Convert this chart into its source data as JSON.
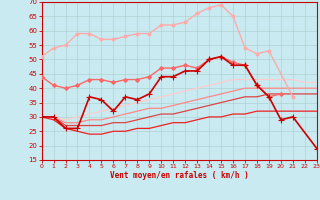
{
  "xlabel": "Vent moyen/en rafales ( km/h )",
  "xlim": [
    0,
    23
  ],
  "ylim": [
    15,
    70
  ],
  "yticks": [
    15,
    20,
    25,
    30,
    35,
    40,
    45,
    50,
    55,
    60,
    65,
    70
  ],
  "xticks": [
    0,
    1,
    2,
    3,
    4,
    5,
    6,
    7,
    8,
    9,
    10,
    11,
    12,
    13,
    14,
    15,
    16,
    17,
    18,
    19,
    20,
    21,
    22,
    23
  ],
  "background_color": "#c8eaf0",
  "grid_color": "#aacccc",
  "lines": [
    {
      "x": [
        0,
        1,
        2,
        3,
        4,
        5,
        6,
        7,
        8,
        9,
        10,
        11,
        12,
        13,
        14,
        15,
        16,
        17,
        18,
        19,
        20
      ],
      "y": [
        44,
        41,
        40,
        41,
        43,
        43,
        42,
        43,
        43,
        44,
        47,
        47,
        48,
        47,
        50,
        51,
        49,
        48,
        41,
        37,
        38
      ],
      "color": "#ff6666",
      "marker": "D",
      "markersize": 2.0,
      "linewidth": 1.0,
      "zorder": 5
    },
    {
      "x": [
        0,
        1,
        2,
        3,
        4,
        5,
        6,
        7,
        8,
        9,
        10,
        11,
        12,
        13,
        14,
        15,
        16,
        17,
        18,
        19,
        21
      ],
      "y": [
        51,
        54,
        55,
        59,
        59,
        57,
        57,
        58,
        59,
        59,
        62,
        62,
        63,
        66,
        68,
        69,
        65,
        54,
        52,
        53,
        37
      ],
      "color": "#ffaaaa",
      "marker": "o",
      "markersize": 2.0,
      "linewidth": 1.0,
      "zorder": 4
    },
    {
      "x": [
        0,
        1,
        2,
        3,
        4,
        5,
        6,
        7,
        8,
        9,
        10,
        11,
        12,
        13,
        14,
        15,
        16,
        17,
        18,
        19,
        20,
        21,
        23
      ],
      "y": [
        30,
        30,
        26,
        26,
        37,
        36,
        32,
        37,
        36,
        38,
        44,
        44,
        46,
        46,
        50,
        51,
        48,
        48,
        41,
        37,
        29,
        30,
        19
      ],
      "color": "#cc0000",
      "marker": "+",
      "markersize": 4,
      "linewidth": 1.2,
      "zorder": 6
    },
    {
      "x": [
        0,
        1,
        2,
        3,
        4,
        5,
        6,
        7,
        8,
        9,
        10,
        11,
        12,
        13,
        14,
        15,
        16,
        17,
        18,
        19,
        20,
        21,
        22,
        23
      ],
      "y": [
        30,
        30,
        27,
        27,
        27,
        27,
        28,
        28,
        29,
        30,
        31,
        31,
        32,
        33,
        34,
        35,
        36,
        37,
        37,
        38,
        38,
        38,
        38,
        38
      ],
      "color": "#dd4444",
      "marker": null,
      "markersize": 0,
      "linewidth": 0.9,
      "zorder": 3
    },
    {
      "x": [
        0,
        1,
        2,
        3,
        4,
        5,
        6,
        7,
        8,
        9,
        10,
        11,
        12,
        13,
        14,
        15,
        16,
        17,
        18,
        19,
        20,
        21,
        22,
        23
      ],
      "y": [
        30,
        30,
        28,
        28,
        29,
        29,
        30,
        31,
        32,
        33,
        33,
        34,
        35,
        36,
        37,
        38,
        39,
        40,
        40,
        40,
        40,
        40,
        40,
        40
      ],
      "color": "#ff8888",
      "marker": null,
      "markersize": 0,
      "linewidth": 0.9,
      "zorder": 3
    },
    {
      "x": [
        0,
        1,
        2,
        3,
        4,
        5,
        6,
        7,
        8,
        9,
        10,
        11,
        12,
        13,
        14,
        15,
        16,
        17,
        18,
        19,
        20,
        21,
        22,
        23
      ],
      "y": [
        30,
        30,
        29,
        30,
        31,
        32,
        33,
        34,
        35,
        36,
        37,
        38,
        39,
        40,
        41,
        42,
        43,
        43,
        43,
        43,
        43,
        43,
        42,
        42
      ],
      "color": "#ffcccc",
      "marker": null,
      "markersize": 0,
      "linewidth": 0.9,
      "zorder": 3
    },
    {
      "x": [
        0,
        1,
        2,
        3,
        4,
        5,
        6,
        7,
        8,
        9,
        10,
        11,
        12,
        13,
        14,
        15,
        16,
        17,
        18,
        19,
        20,
        21,
        22,
        23
      ],
      "y": [
        30,
        29,
        26,
        25,
        24,
        24,
        25,
        25,
        26,
        26,
        27,
        28,
        28,
        29,
        30,
        30,
        31,
        31,
        32,
        32,
        32,
        32,
        32,
        32
      ],
      "color": "#ee2222",
      "marker": null,
      "markersize": 0,
      "linewidth": 0.9,
      "zorder": 3
    }
  ]
}
